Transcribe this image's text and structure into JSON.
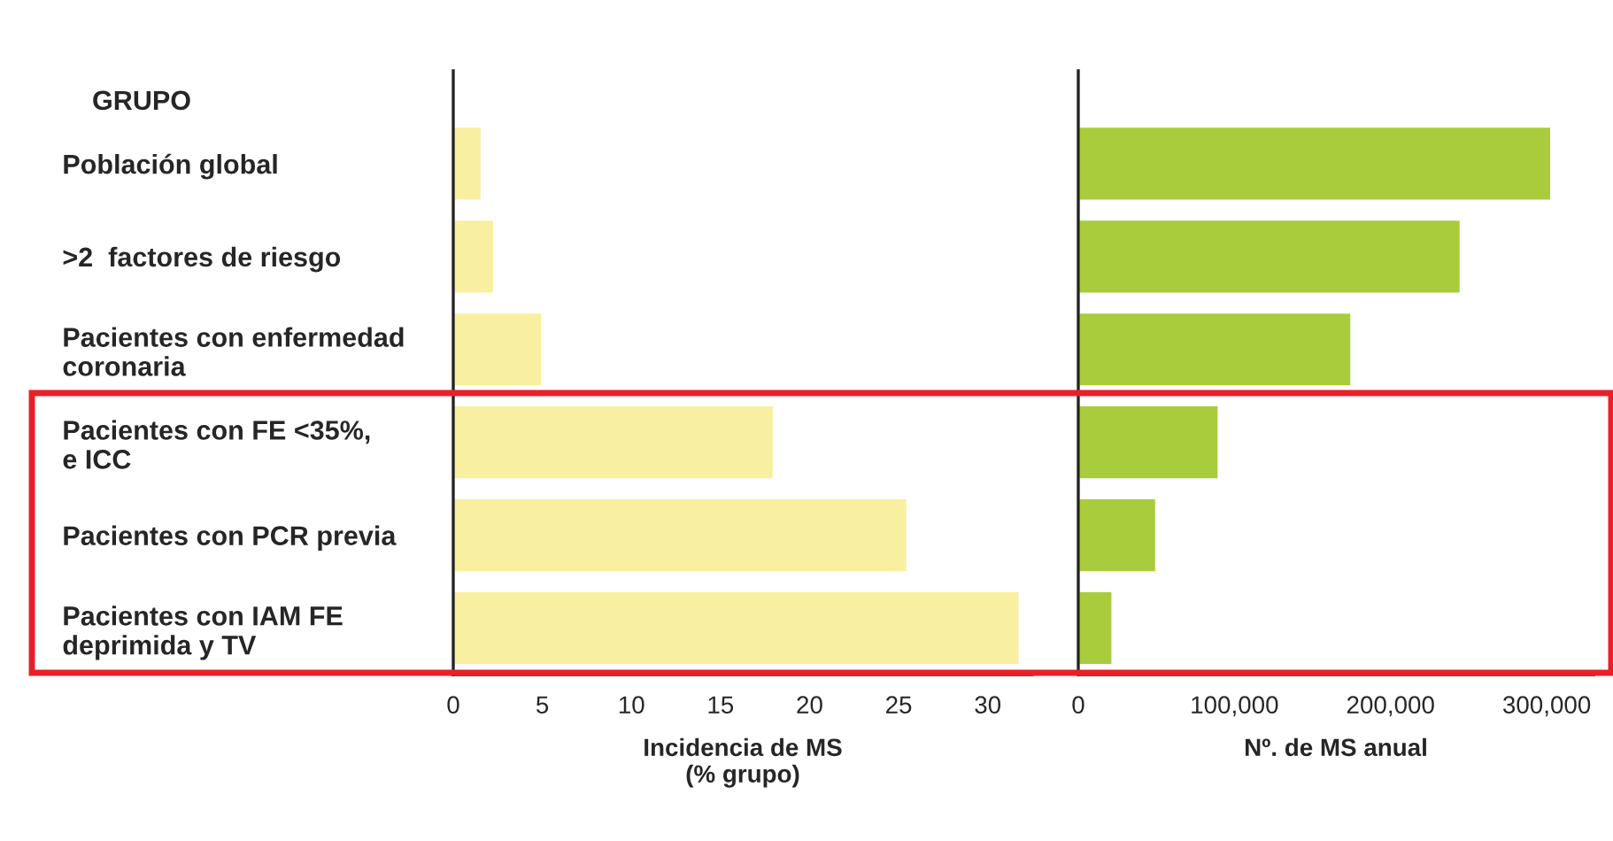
{
  "chart_data": [
    {
      "type": "bar",
      "orientation": "horizontal",
      "ylabel": "GRUPO",
      "xlabel": "Incidencia de MS\n(% grupo)",
      "categories": [
        "Población global",
        ">2  factores de riesgo",
        "Pacientes con enfermedad\ncoronaria",
        "Pacientes con FE <35%,\ne ICC",
        "Pacientes con PCR previa",
        "Pacientes con IAM FE\ndeprimida y TV"
      ],
      "series": [
        {
          "color": "#f8f0a0",
          "values": [
            1.6,
            2.3,
            5.0,
            18,
            25.5,
            31.8
          ]
        }
      ],
      "xlim": [
        0,
        32.5
      ],
      "xticks": [
        0,
        5,
        10,
        15,
        20,
        25,
        30
      ],
      "grid": false,
      "legend": false
    },
    {
      "type": "bar",
      "orientation": "horizontal",
      "xlabel": "Nº. de MS anual",
      "tick_labels": "x",
      "categories": [
        null,
        null,
        null,
        null,
        null,
        null
      ],
      "series": [
        {
          "color": "#a8cc3c",
          "values": [
            303000,
            245000,
            175000,
            90000,
            50000,
            22000
          ]
        }
      ],
      "xlim": [
        0,
        330000
      ],
      "xticks": [
        0,
        {
          "value": 100000,
          "label": "100,000"
        },
        {
          "value": 200000,
          "label": "200,000"
        },
        {
          "value": 300000,
          "label": "300,000"
        }
      ],
      "grid": false,
      "legend": false
    }
  ]
}
